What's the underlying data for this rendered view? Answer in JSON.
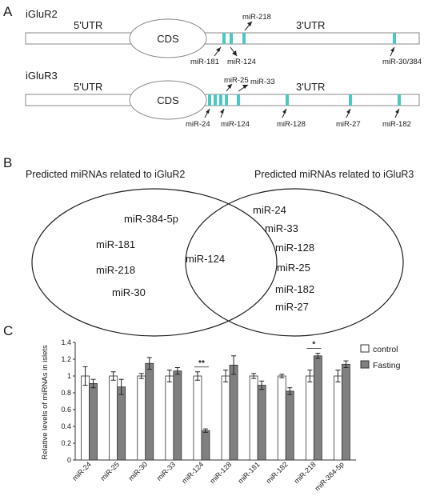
{
  "colors": {
    "site": "#4cc8c4",
    "control": "#ffffff",
    "fasting": "#808080",
    "stroke": "#333333"
  },
  "panel_a": {
    "letter": "A",
    "iglur2": {
      "name": "iGluR2",
      "utr5": "5'UTR",
      "cds": "CDS",
      "utr3": "3'UTR",
      "sites": [
        "miR-181",
        "miR-124",
        "miR-218",
        "miR-30/384"
      ]
    },
    "iglur3": {
      "name": "iGluR3",
      "utr5": "5'UTR",
      "cds": "CDS",
      "utr3": "3'UTR",
      "sites": [
        "miR-24",
        "miR-25",
        "miR-124",
        "miR-33",
        "miR-128",
        "miR-27",
        "miR-182"
      ]
    }
  },
  "panel_b": {
    "letter": "B",
    "left_title": "Predicted miRNAs related to iGluR2",
    "right_title": "Predicted miRNAs related to iGluR3",
    "left_only": [
      "miR-384-5p",
      "miR-181",
      "miR-218",
      "miR-30"
    ],
    "shared": [
      "miR-124"
    ],
    "right_only": [
      "miR-24",
      "miR-33",
      "miR-128",
      "miR-25",
      "miR-182",
      "miR-27"
    ]
  },
  "panel_c": {
    "letter": "C",
    "chart_data": {
      "type": "bar",
      "ylabel": "Relative levels of miRNAs in islets",
      "ylim": [
        0,
        1.4
      ],
      "yticks": [
        "0",
        "0.2",
        "0.4",
        "0.6",
        "0.8",
        "1",
        "1.2",
        "1.4"
      ],
      "categories": [
        "miR-24",
        "miR-25",
        "miR-30",
        "miR-33",
        "miR-124",
        "miR-128",
        "miR-181",
        "miR-182",
        "miR-218",
        "miR-384-5p"
      ],
      "series": [
        {
          "name": "control",
          "color": "#ffffff",
          "values": [
            1.0,
            1.0,
            1.0,
            1.0,
            1.0,
            1.0,
            1.0,
            1.0,
            1.0,
            1.0
          ],
          "errors": [
            0.11,
            0.05,
            0.03,
            0.07,
            0.05,
            0.07,
            0.03,
            0.02,
            0.07,
            0.07
          ]
        },
        {
          "name": "Fasting",
          "color": "#808080",
          "values": [
            0.91,
            0.87,
            1.15,
            1.06,
            0.35,
            1.13,
            0.89,
            0.82,
            1.24,
            1.14
          ],
          "errors": [
            0.05,
            0.09,
            0.07,
            0.04,
            0.02,
            0.11,
            0.05,
            0.04,
            0.03,
            0.04
          ]
        }
      ],
      "significance": [
        {
          "category": "miR-124",
          "label": "**"
        },
        {
          "category": "miR-218",
          "label": "*"
        }
      ],
      "legend_position": "top-right"
    }
  }
}
